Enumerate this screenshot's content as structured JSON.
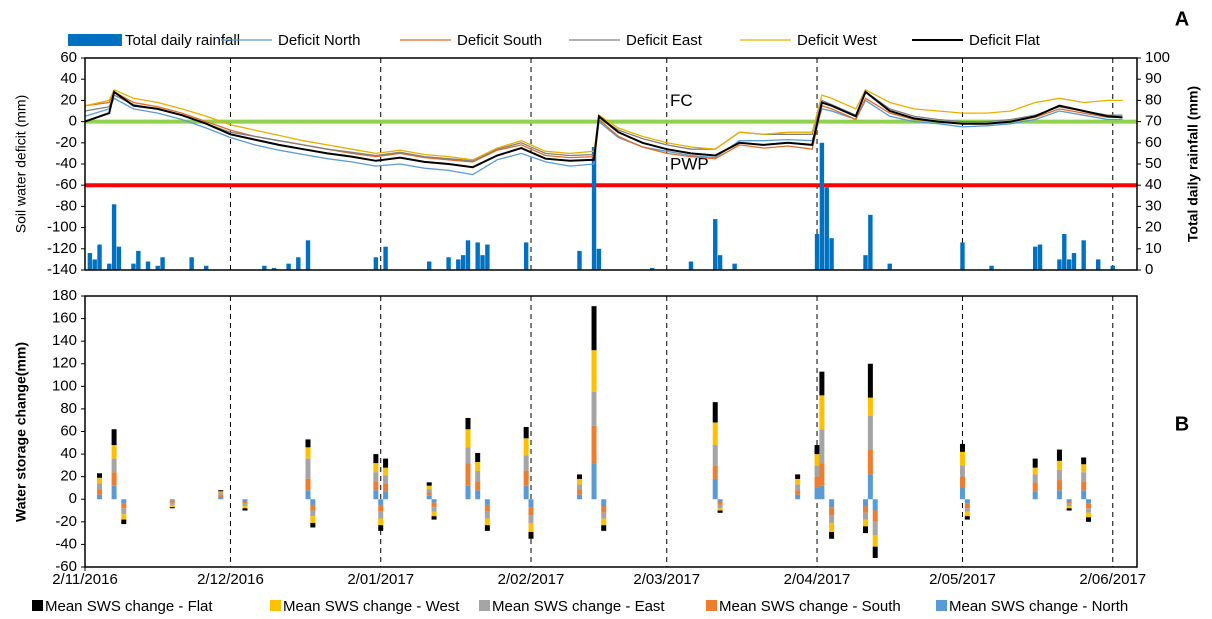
{
  "chart_data": [
    {
      "type": "line",
      "annotation": "A",
      "ylabel": "Soil water deficit  (mm)",
      "y2label": "Total daily rainfall (mm)",
      "xlim": [
        "2016-11-02",
        "2017-06-07"
      ],
      "ylim": [
        -140,
        60
      ],
      "yticks": [
        -140,
        -120,
        -100,
        -80,
        -60,
        -40,
        -20,
        0,
        20,
        40,
        60
      ],
      "y2lim": [
        0,
        100
      ],
      "y2ticks": [
        0,
        10,
        20,
        30,
        40,
        50,
        60,
        70,
        80,
        90,
        100
      ],
      "hlines": [
        {
          "label": "FC",
          "value": 0,
          "color": "#92d050"
        },
        {
          "label": "PWP",
          "value": -60,
          "color": "#ff0000"
        }
      ],
      "x": [
        "2016-11-02",
        "2016-11-07",
        "2016-11-08",
        "2016-11-12",
        "2016-11-17",
        "2016-11-22",
        "2016-11-27",
        "2016-12-02",
        "2016-12-07",
        "2016-12-12",
        "2016-12-17",
        "2016-12-22",
        "2016-12-27",
        "2017-01-01",
        "2017-01-06",
        "2017-01-11",
        "2017-01-16",
        "2017-01-21",
        "2017-01-26",
        "2017-01-31",
        "2017-02-05",
        "2017-02-10",
        "2017-02-15",
        "2017-02-16",
        "2017-02-20",
        "2017-02-25",
        "2017-03-02",
        "2017-03-07",
        "2017-03-12",
        "2017-03-17",
        "2017-03-22",
        "2017-03-27",
        "2017-04-01",
        "2017-04-03",
        "2017-04-05",
        "2017-04-10",
        "2017-04-12",
        "2017-04-17",
        "2017-04-22",
        "2017-04-27",
        "2017-05-02",
        "2017-05-07",
        "2017-05-12",
        "2017-05-17",
        "2017-05-22",
        "2017-05-27",
        "2017-06-01",
        "2017-06-04"
      ],
      "series": [
        {
          "name": "Total daily rainfall",
          "type": "bar",
          "axis": "y2",
          "color": "#0070c0",
          "x": [
            "2016-11-03",
            "2016-11-04",
            "2016-11-05",
            "2016-11-07",
            "2016-11-08",
            "2016-11-09",
            "2016-11-12",
            "2016-11-13",
            "2016-11-15",
            "2016-11-17",
            "2016-11-18",
            "2016-11-24",
            "2016-11-27",
            "2016-12-09",
            "2016-12-11",
            "2016-12-14",
            "2016-12-16",
            "2016-12-18",
            "2017-01-01",
            "2017-01-03",
            "2017-01-12",
            "2017-01-16",
            "2017-01-18",
            "2017-01-19",
            "2017-01-20",
            "2017-01-22",
            "2017-01-23",
            "2017-01-24",
            "2017-02-01",
            "2017-02-12",
            "2017-02-15",
            "2017-02-16",
            "2017-02-27",
            "2017-03-07",
            "2017-03-12",
            "2017-03-13",
            "2017-03-16",
            "2017-04-02",
            "2017-04-03",
            "2017-04-04",
            "2017-04-05",
            "2017-04-12",
            "2017-04-13",
            "2017-04-17",
            "2017-05-02",
            "2017-05-08",
            "2017-05-17",
            "2017-05-18",
            "2017-05-22",
            "2017-05-23",
            "2017-05-24",
            "2017-05-25",
            "2017-05-27",
            "2017-05-30",
            "2017-06-02"
          ],
          "values": [
            8,
            5,
            12,
            3,
            31,
            11,
            3,
            9,
            4,
            2,
            6,
            6,
            2,
            2,
            1,
            3,
            6,
            14,
            6,
            11,
            4,
            6,
            5,
            7,
            14,
            13,
            7,
            12,
            13,
            9,
            58,
            10,
            1,
            4,
            24,
            7,
            3,
            17,
            60,
            39,
            15,
            7,
            26,
            3,
            13,
            2,
            11,
            12,
            5,
            17,
            5,
            8,
            14,
            5,
            2
          ]
        },
        {
          "name": "Deficit North",
          "color": "#5b9bd5",
          "width": 1.3,
          "values": [
            5,
            12,
            22,
            12,
            8,
            2,
            -6,
            -15,
            -22,
            -27,
            -31,
            -35,
            -38,
            -42,
            -40,
            -44,
            -46,
            -50,
            -36,
            -30,
            -38,
            -42,
            -40,
            0,
            -15,
            -24,
            -28,
            -32,
            -34,
            -18,
            -18,
            -17,
            -18,
            12,
            10,
            2,
            20,
            5,
            0,
            -2,
            -5,
            -4,
            -2,
            2,
            10,
            6,
            2,
            2
          ]
        },
        {
          "name": "Deficit South",
          "color": "#e06c2a",
          "width": 1.3,
          "values": [
            15,
            18,
            28,
            18,
            14,
            8,
            0,
            -8,
            -14,
            -18,
            -22,
            -26,
            -30,
            -33,
            -30,
            -34,
            -36,
            -38,
            -27,
            -22,
            -32,
            -34,
            -33,
            2,
            -14,
            -24,
            -30,
            -33,
            -35,
            -22,
            -25,
            -23,
            -26,
            15,
            12,
            2,
            22,
            8,
            2,
            0,
            -2,
            -2,
            0,
            4,
            12,
            8,
            4,
            4
          ]
        },
        {
          "name": "Deficit East",
          "color": "#808080",
          "width": 1.3,
          "values": [
            10,
            14,
            25,
            16,
            12,
            6,
            -2,
            -10,
            -14,
            -18,
            -22,
            -26,
            -29,
            -32,
            -29,
            -33,
            -35,
            -37,
            -26,
            -20,
            -30,
            -32,
            -31,
            4,
            -8,
            -16,
            -22,
            -26,
            -26,
            -10,
            -12,
            -12,
            -12,
            20,
            16,
            6,
            28,
            12,
            5,
            2,
            0,
            0,
            2,
            6,
            14,
            10,
            6,
            6
          ]
        },
        {
          "name": "Deficit West",
          "color": "#e6b000",
          "width": 1.3,
          "values": [
            15,
            20,
            30,
            22,
            18,
            12,
            5,
            -3,
            -8,
            -13,
            -18,
            -22,
            -26,
            -30,
            -27,
            -31,
            -33,
            -36,
            -25,
            -18,
            -28,
            -30,
            -28,
            6,
            -6,
            -14,
            -20,
            -24,
            -26,
            -10,
            -12,
            -10,
            -10,
            25,
            22,
            12,
            30,
            18,
            12,
            10,
            8,
            8,
            10,
            18,
            22,
            18,
            20,
            20
          ]
        },
        {
          "name": "Deficit Flat",
          "color": "#000000",
          "width": 2,
          "values": [
            0,
            8,
            28,
            15,
            12,
            6,
            -2,
            -12,
            -17,
            -22,
            -26,
            -30,
            -33,
            -37,
            -34,
            -38,
            -40,
            -43,
            -32,
            -25,
            -35,
            -37,
            -36,
            5,
            -10,
            -20,
            -26,
            -30,
            -32,
            -20,
            -22,
            -20,
            -22,
            18,
            15,
            5,
            28,
            10,
            3,
            0,
            -2,
            -2,
            0,
            5,
            15,
            10,
            5,
            4
          ]
        }
      ]
    },
    {
      "type": "stacked_bar",
      "annotation": "B",
      "ylabel": "Water storage change(mm)",
      "xlim": [
        "2016-11-02",
        "2017-06-07"
      ],
      "ylim": [
        -60,
        180
      ],
      "yticks": [
        -60,
        -40,
        -20,
        0,
        20,
        40,
        60,
        80,
        100,
        120,
        140,
        160,
        180
      ],
      "xticks": [
        {
          "value": "2016-11-02",
          "label": "2/11/2016"
        },
        {
          "value": "2016-12-02",
          "label": "2/12/2016"
        },
        {
          "value": "2017-01-02",
          "label": "2/01/2017"
        },
        {
          "value": "2017-02-02",
          "label": "2/02/2017"
        },
        {
          "value": "2017-03-02",
          "label": "2/03/2017"
        },
        {
          "value": "2017-04-02",
          "label": "2/04/2017"
        },
        {
          "value": "2017-05-02",
          "label": "2/05/2017"
        },
        {
          "value": "2017-06-02",
          "label": "2/06/2017"
        }
      ],
      "x": [
        "2016-11-05",
        "2016-11-08",
        "2016-11-10",
        "2016-11-20",
        "2016-11-30",
        "2016-12-05",
        "2016-12-18",
        "2016-12-19",
        "2017-01-01",
        "2017-01-02",
        "2017-01-03",
        "2017-01-12",
        "2017-01-13",
        "2017-01-20",
        "2017-01-22",
        "2017-01-24",
        "2017-02-01",
        "2017-02-02",
        "2017-02-12",
        "2017-02-15",
        "2017-02-17",
        "2017-03-12",
        "2017-03-13",
        "2017-03-29",
        "2017-04-02",
        "2017-04-03",
        "2017-04-05",
        "2017-04-12",
        "2017-04-13",
        "2017-04-14",
        "2017-05-02",
        "2017-05-03",
        "2017-05-17",
        "2017-05-22",
        "2017-05-24",
        "2017-05-27",
        "2017-05-28"
      ],
      "series": [
        {
          "name": "Mean SWS change - Flat",
          "color": "#000000",
          "values": [
            4,
            14,
            -4,
            -1,
            1,
            -2,
            7,
            -4,
            8,
            -5,
            8,
            3,
            -3,
            10,
            8,
            -5,
            10,
            -6,
            4,
            39,
            -5,
            18,
            -2,
            4,
            8,
            21,
            -6,
            -6,
            30,
            -10,
            7,
            -3,
            8,
            10,
            -2,
            6,
            -4
          ]
        },
        {
          "name": "Mean SWS change - West",
          "color": "#ffc000",
          "values": [
            5,
            12,
            -5,
            -2,
            1,
            -2,
            10,
            -6,
            8,
            -6,
            7,
            3,
            -4,
            16,
            8,
            -6,
            15,
            -8,
            5,
            37,
            -6,
            20,
            -2,
            5,
            10,
            30,
            -8,
            -6,
            16,
            -10,
            12,
            -4,
            6,
            8,
            -2,
            7,
            -4
          ]
        },
        {
          "name": "Mean SWS change - East",
          "color": "#a5a5a5",
          "values": [
            5,
            12,
            -5,
            -2,
            2,
            -2,
            18,
            -5,
            8,
            -6,
            7,
            3,
            -4,
            14,
            9,
            -6,
            14,
            -7,
            4,
            30,
            -5,
            18,
            -3,
            5,
            10,
            30,
            -7,
            -6,
            30,
            -12,
            10,
            -3,
            7,
            9,
            -2,
            8,
            -4
          ]
        },
        {
          "name": "Mean SWS change - South",
          "color": "#ed7d31",
          "values": [
            5,
            12,
            -4,
            -2,
            2,
            -2,
            10,
            -5,
            8,
            -6,
            7,
            3,
            -4,
            20,
            8,
            -6,
            13,
            -7,
            5,
            33,
            -6,
            12,
            -3,
            4,
            10,
            20,
            -7,
            -6,
            22,
            -10,
            10,
            -4,
            8,
            9,
            -2,
            8,
            -4
          ]
        },
        {
          "name": "Mean SWS change - North",
          "color": "#5b9bd5",
          "values": [
            4,
            12,
            -4,
            -1,
            2,
            -2,
            8,
            -5,
            8,
            -5,
            7,
            3,
            -3,
            12,
            8,
            -5,
            12,
            -7,
            4,
            32,
            -6,
            18,
            -2,
            4,
            10,
            12,
            -7,
            -6,
            22,
            -10,
            10,
            -4,
            7,
            8,
            -2,
            8,
            -4
          ]
        }
      ]
    }
  ]
}
